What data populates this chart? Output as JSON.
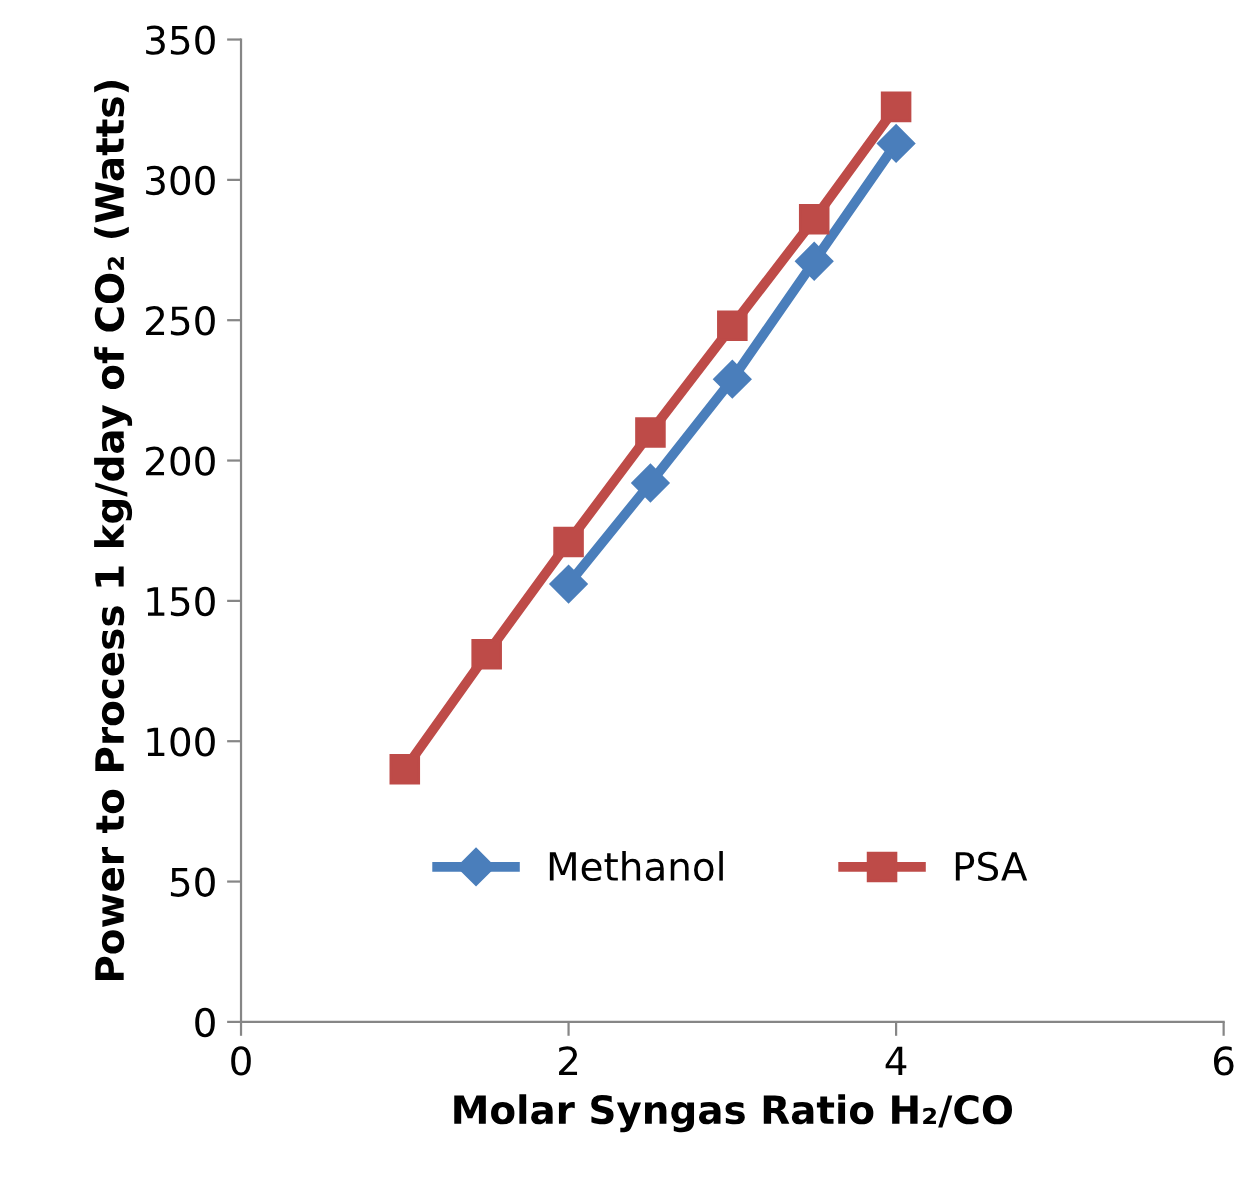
{
  "chart_data": {
    "type": "line",
    "xlabel": "Molar Syngas Ratio H₂/CO",
    "ylabel": "Power to Process 1 kg/day of CO₂ (Watts)",
    "xlim": [
      0,
      6
    ],
    "xticks": [
      0,
      2,
      4,
      6
    ],
    "ylim": [
      0,
      350
    ],
    "yticks": [
      0,
      50,
      100,
      150,
      200,
      250,
      300,
      350
    ],
    "grid": false,
    "legend": "bottom",
    "line_style": "solid",
    "series": [
      {
        "name": "Methanol",
        "color": "#4a7ebb",
        "marker": "diamond",
        "x": [
          2,
          2.5,
          3,
          3.5,
          4
        ],
        "values": [
          156,
          192,
          229,
          271,
          313
        ]
      },
      {
        "name": "PSA",
        "color": "#be4b48",
        "marker": "square",
        "x": [
          1,
          1.5,
          2,
          2.5,
          3,
          3.5,
          4
        ],
        "values": [
          90,
          131,
          171,
          210,
          248,
          286,
          326
        ]
      }
    ]
  }
}
